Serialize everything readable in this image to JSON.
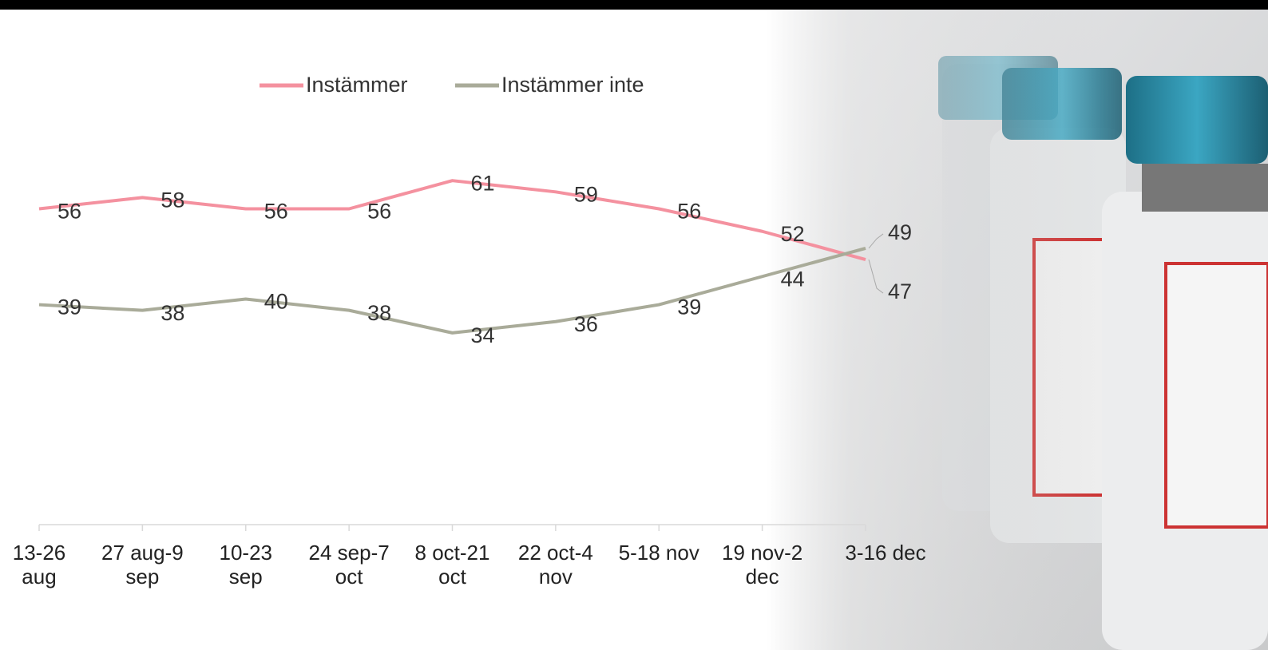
{
  "chart_data": {
    "type": "line",
    "categories": [
      "13-26 aug",
      "27 aug-9 sep",
      "10-23 sep",
      "24 sep-7 oct",
      "8 oct-21 oct",
      "22 oct-4 nov",
      "5-18 nov",
      "19 nov-2 dec",
      "3-16 dec"
    ],
    "series": [
      {
        "name": "Instämmer",
        "color": "#f4919f",
        "values": [
          56,
          58,
          56,
          56,
          61,
          59,
          56,
          52,
          47
        ]
      },
      {
        "name": "Instämmer inte",
        "color": "#a9ab99",
        "values": [
          39,
          38,
          40,
          38,
          34,
          36,
          39,
          44,
          49
        ]
      }
    ],
    "ylim": [
      0,
      80
    ]
  }
}
